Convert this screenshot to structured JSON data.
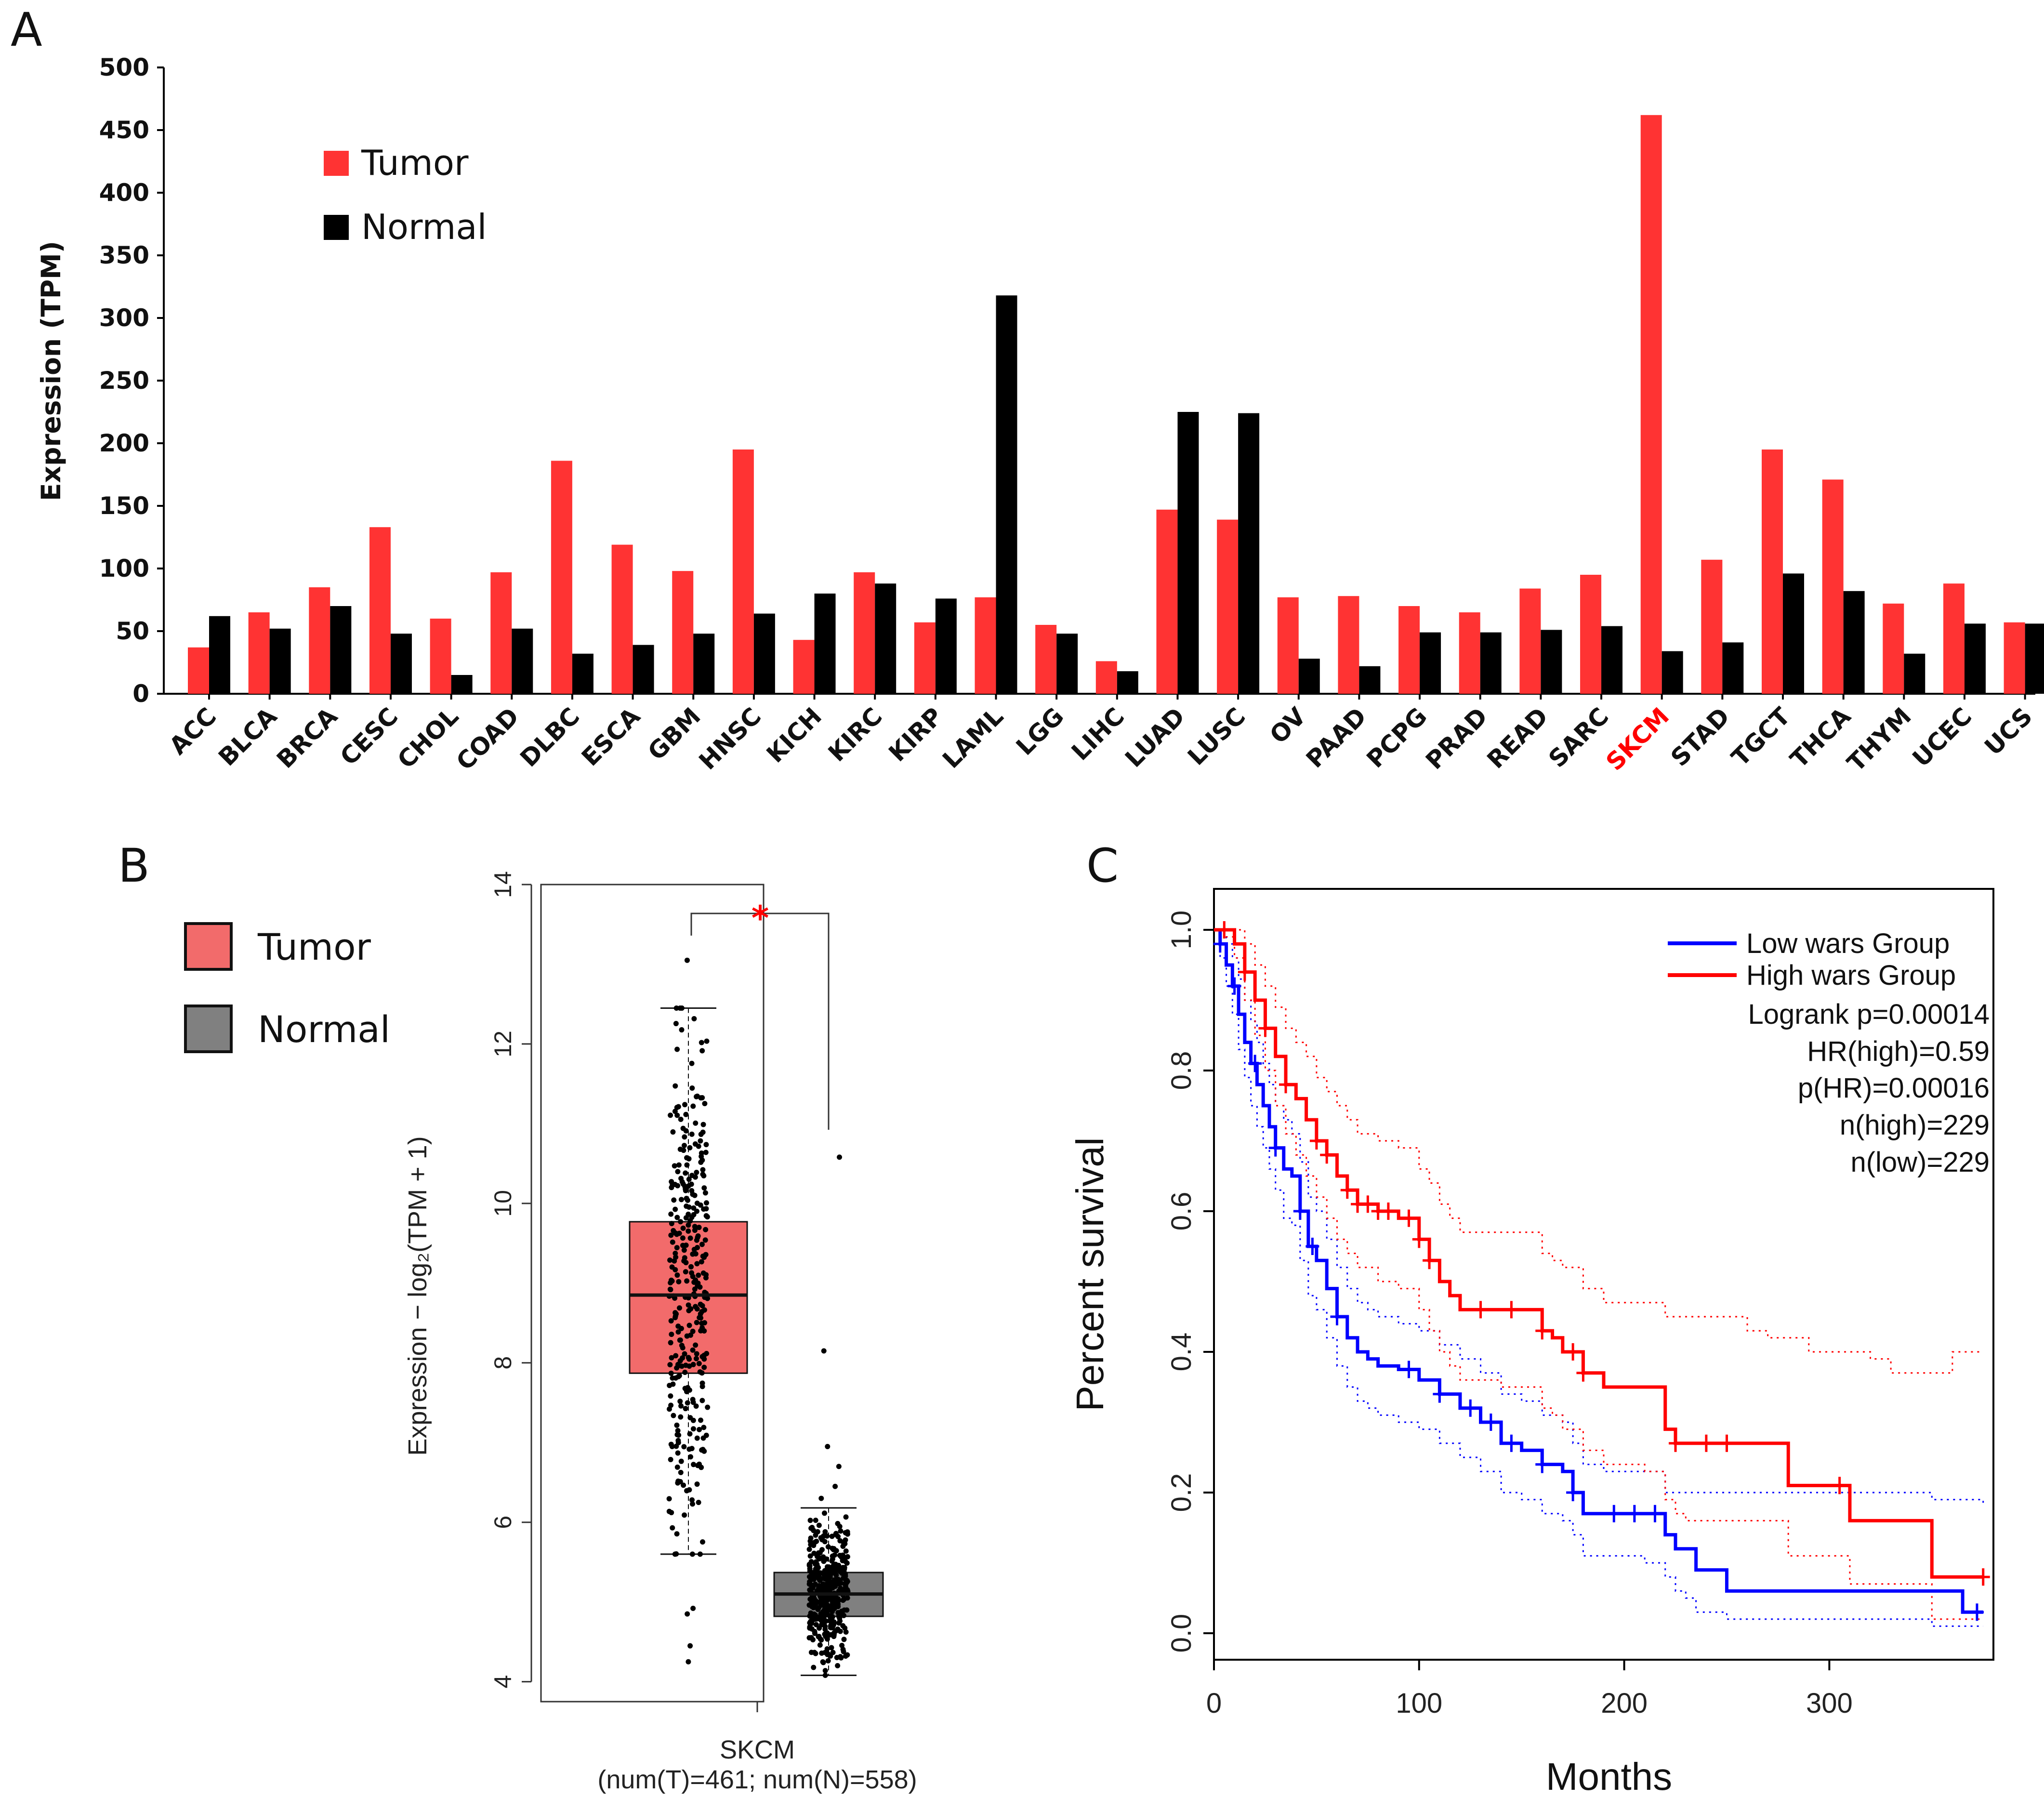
{
  "panels": {
    "a": {
      "letter": "A"
    },
    "b": {
      "letter": "B"
    },
    "c": {
      "letter": "C"
    }
  },
  "colors": {
    "tumor": "#ff3333",
    "normal": "#000000",
    "tumor_box": "#f26b6b",
    "normal_box": "#808080",
    "low_group": "#0000ff",
    "high_group": "#ff0000",
    "highlight_label": "#ff0000"
  },
  "chart_data": [
    {
      "id": "panel-a",
      "type": "bar",
      "title": "",
      "ylabel": "Expression (TPM)",
      "xlabel": "",
      "ylim": [
        0,
        500
      ],
      "yticks": [
        0,
        50,
        100,
        150,
        200,
        250,
        300,
        350,
        400,
        450,
        500
      ],
      "highlight_category": "SKCM",
      "legend": [
        "Tumor",
        "Normal"
      ],
      "legend_position": "top-left",
      "categories": [
        "ACC",
        "BLCA",
        "BRCA",
        "CESC",
        "CHOL",
        "COAD",
        "DLBC",
        "ESCA",
        "GBM",
        "HNSC",
        "KICH",
        "KIRC",
        "KIRP",
        "LAML",
        "LGG",
        "LIHC",
        "LUAD",
        "LUSC",
        "OV",
        "PAAD",
        "PCPG",
        "PRAD",
        "READ",
        "SARC",
        "SKCM",
        "STAD",
        "TGCT",
        "THCA",
        "THYM",
        "UCEC",
        "UCS"
      ],
      "series": [
        {
          "name": "Tumor",
          "values": [
            37,
            65,
            85,
            133,
            60,
            97,
            186,
            119,
            98,
            195,
            43,
            97,
            57,
            77,
            55,
            26,
            147,
            139,
            77,
            78,
            70,
            65,
            84,
            95,
            462,
            107,
            195,
            171,
            72,
            88,
            57
          ]
        },
        {
          "name": "Normal",
          "values": [
            62,
            52,
            70,
            48,
            15,
            52,
            32,
            39,
            48,
            64,
            80,
            88,
            76,
            318,
            48,
            18,
            225,
            224,
            28,
            22,
            49,
            49,
            51,
            54,
            34,
            41,
            96,
            82,
            32,
            56,
            56
          ]
        }
      ]
    },
    {
      "id": "panel-b",
      "type": "box",
      "title": "",
      "ylabel": "Expression − log₂(TPM + 1)",
      "ylim": [
        3.75,
        14
      ],
      "yticks": [
        4,
        6,
        8,
        10,
        12,
        14
      ],
      "category": "SKCM",
      "counts_label": "(num(T)=461; num(N)=558)",
      "significance": "*",
      "legend": [
        "Tumor",
        "Normal"
      ],
      "legend_position": "top-left",
      "boxes": [
        {
          "name": "Tumor",
          "whisker_low": 5.6,
          "q1": 7.87,
          "median": 8.85,
          "q3": 9.77,
          "whisker_high": 12.45,
          "outliers": [
            4.25,
            4.45,
            4.85,
            4.92,
            13.05
          ]
        },
        {
          "name": "Normal",
          "whisker_low": 4.08,
          "q1": 4.82,
          "median": 5.1,
          "q3": 5.37,
          "whisker_high": 6.18,
          "outliers": [
            6.3,
            6.45,
            6.7,
            6.95,
            8.15,
            10.58
          ]
        }
      ]
    },
    {
      "id": "panel-c",
      "type": "line",
      "title": "",
      "xlabel": "Months",
      "ylabel": "Percent survival",
      "xlim": [
        0,
        380
      ],
      "ylim": [
        0,
        1.0
      ],
      "xticks": [
        0,
        100,
        200,
        300
      ],
      "yticks": [
        0.0,
        0.2,
        0.4,
        0.6,
        0.8,
        1.0
      ],
      "legend_position": "top-right",
      "annotations": [
        "Logrank p=0.00014",
        "HR(high)=0.59",
        "p(HR)=0.00016",
        "n(high)=229",
        "n(low)=229"
      ],
      "series": [
        {
          "name": "Low wars Group",
          "x": [
            0,
            3,
            6,
            9,
            12,
            15,
            18,
            21,
            24,
            27,
            30,
            34,
            38,
            42,
            46,
            50,
            55,
            60,
            65,
            70,
            75,
            80,
            90,
            100,
            110,
            120,
            130,
            140,
            150,
            160,
            170,
            175,
            180,
            190,
            200,
            210,
            220,
            225,
            230,
            235,
            240,
            250,
            260,
            280,
            300,
            330,
            350,
            365,
            375
          ],
          "y": [
            1.0,
            0.98,
            0.95,
            0.92,
            0.88,
            0.84,
            0.81,
            0.78,
            0.75,
            0.72,
            0.69,
            0.66,
            0.65,
            0.6,
            0.55,
            0.53,
            0.49,
            0.45,
            0.42,
            0.4,
            0.39,
            0.38,
            0.375,
            0.36,
            0.34,
            0.32,
            0.3,
            0.27,
            0.26,
            0.24,
            0.23,
            0.2,
            0.17,
            0.17,
            0.17,
            0.17,
            0.14,
            0.12,
            0.12,
            0.09,
            0.09,
            0.06,
            0.06,
            0.06,
            0.06,
            0.06,
            0.06,
            0.03,
            0.03
          ],
          "upper_ci": [
            1.0,
            0.99,
            0.98,
            0.96,
            0.93,
            0.9,
            0.87,
            0.84,
            0.81,
            0.78,
            0.75,
            0.73,
            0.71,
            0.67,
            0.62,
            0.6,
            0.56,
            0.52,
            0.49,
            0.47,
            0.46,
            0.45,
            0.44,
            0.43,
            0.41,
            0.39,
            0.37,
            0.34,
            0.33,
            0.31,
            0.3,
            0.27,
            0.24,
            0.23,
            0.23,
            0.23,
            0.2,
            0.2,
            0.2,
            0.2,
            0.2,
            0.2,
            0.2,
            0.2,
            0.2,
            0.2,
            0.19,
            0.19,
            0.18
          ],
          "lower_ci": [
            1.0,
            0.96,
            0.92,
            0.88,
            0.83,
            0.79,
            0.75,
            0.72,
            0.69,
            0.66,
            0.63,
            0.59,
            0.58,
            0.53,
            0.48,
            0.46,
            0.42,
            0.38,
            0.35,
            0.33,
            0.32,
            0.31,
            0.3,
            0.29,
            0.27,
            0.25,
            0.23,
            0.2,
            0.19,
            0.17,
            0.16,
            0.14,
            0.11,
            0.11,
            0.11,
            0.1,
            0.08,
            0.06,
            0.05,
            0.03,
            0.03,
            0.02,
            0.02,
            0.02,
            0.02,
            0.02,
            0.01,
            0.01,
            0.01
          ]
        },
        {
          "name": "High wars Group",
          "x": [
            0,
            5,
            10,
            15,
            20,
            25,
            30,
            35,
            40,
            45,
            50,
            55,
            60,
            65,
            70,
            75,
            80,
            90,
            100,
            105,
            110,
            115,
            120,
            130,
            140,
            150,
            160,
            165,
            170,
            180,
            190,
            200,
            210,
            220,
            225,
            230,
            240,
            250,
            260,
            270,
            280,
            290,
            300,
            310,
            320,
            330,
            340,
            350,
            360,
            370,
            375
          ],
          "y": [
            1.0,
            1.0,
            0.98,
            0.94,
            0.9,
            0.86,
            0.82,
            0.78,
            0.76,
            0.73,
            0.7,
            0.68,
            0.65,
            0.63,
            0.61,
            0.61,
            0.6,
            0.59,
            0.56,
            0.53,
            0.5,
            0.48,
            0.46,
            0.46,
            0.46,
            0.46,
            0.43,
            0.42,
            0.4,
            0.37,
            0.35,
            0.35,
            0.35,
            0.29,
            0.27,
            0.27,
            0.27,
            0.27,
            0.27,
            0.27,
            0.21,
            0.21,
            0.21,
            0.16,
            0.16,
            0.16,
            0.16,
            0.08,
            0.08,
            0.08,
            0.08
          ],
          "upper_ci": [
            1.0,
            1.0,
            1.0,
            0.98,
            0.95,
            0.92,
            0.89,
            0.86,
            0.84,
            0.82,
            0.79,
            0.77,
            0.75,
            0.73,
            0.71,
            0.71,
            0.7,
            0.69,
            0.66,
            0.64,
            0.61,
            0.59,
            0.57,
            0.57,
            0.57,
            0.57,
            0.54,
            0.53,
            0.52,
            0.49,
            0.47,
            0.47,
            0.47,
            0.45,
            0.45,
            0.45,
            0.45,
            0.45,
            0.43,
            0.42,
            0.42,
            0.4,
            0.4,
            0.4,
            0.39,
            0.37,
            0.37,
            0.37,
            0.4,
            0.4,
            0.4
          ],
          "lower_ci": [
            1.0,
            0.99,
            0.96,
            0.9,
            0.85,
            0.8,
            0.75,
            0.71,
            0.68,
            0.65,
            0.62,
            0.59,
            0.56,
            0.54,
            0.52,
            0.52,
            0.5,
            0.49,
            0.46,
            0.43,
            0.4,
            0.38,
            0.36,
            0.36,
            0.35,
            0.35,
            0.32,
            0.31,
            0.29,
            0.26,
            0.24,
            0.24,
            0.23,
            0.19,
            0.17,
            0.16,
            0.16,
            0.16,
            0.16,
            0.16,
            0.11,
            0.11,
            0.11,
            0.07,
            0.07,
            0.07,
            0.07,
            0.02,
            0.02,
            0.02,
            0.02
          ]
        }
      ],
      "censor_low": [
        3,
        10,
        20,
        30,
        42,
        48,
        60,
        95,
        110,
        125,
        135,
        145,
        160,
        175,
        195,
        205,
        215,
        372
      ],
      "censor_high": [
        5,
        15,
        25,
        35,
        50,
        55,
        65,
        70,
        75,
        80,
        85,
        95,
        100,
        105,
        130,
        145,
        160,
        175,
        180,
        225,
        240,
        250,
        305,
        375
      ]
    }
  ]
}
